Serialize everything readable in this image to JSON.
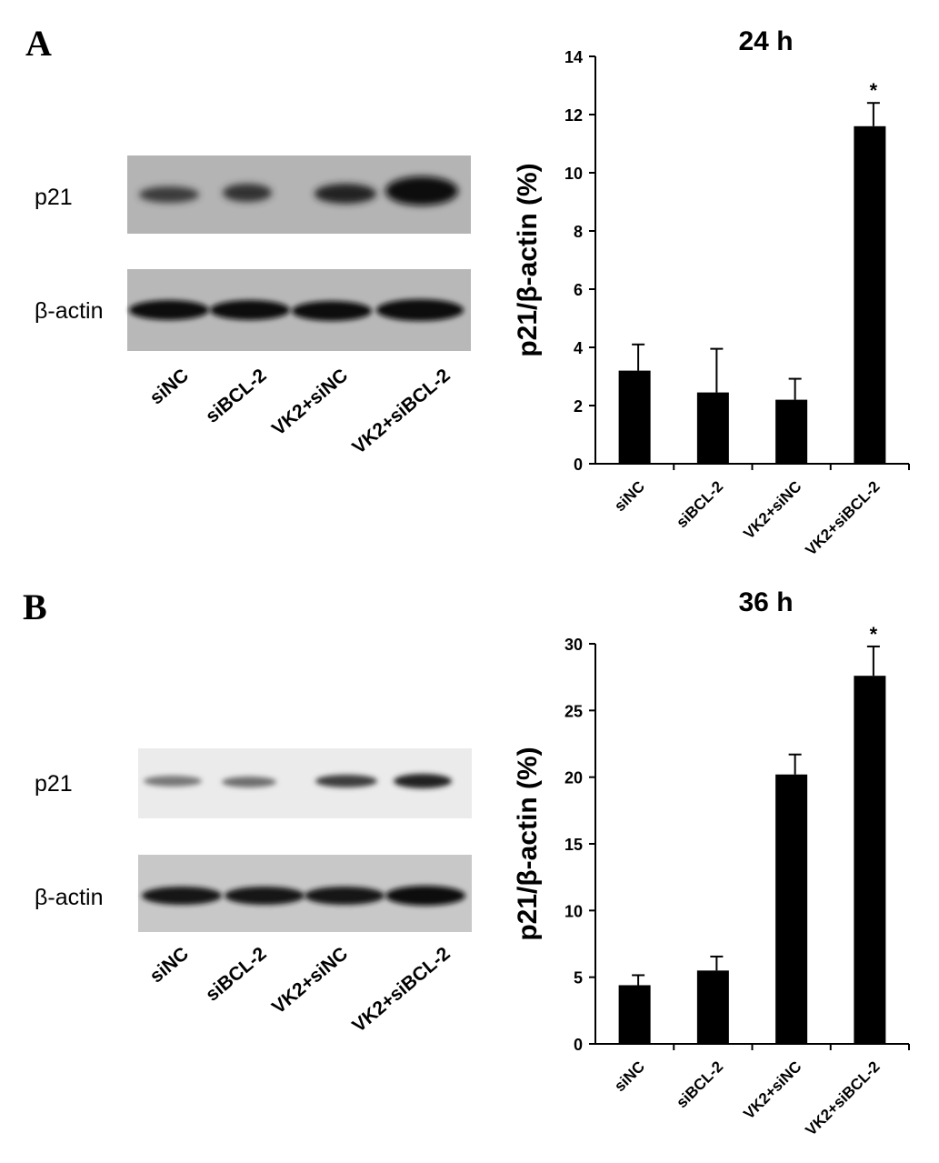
{
  "panels": [
    {
      "letter": "A",
      "blot": {
        "rows": [
          "p21",
          "β-actin"
        ],
        "lanes": [
          "siNC",
          "siBCL-2",
          "VK2+siNC",
          "VK2+siBCL-2"
        ]
      }
    },
    {
      "letter": "B",
      "blot": {
        "rows": [
          "p21",
          "β-actin"
        ],
        "lanes": [
          "siNC",
          "siBCL-2",
          "VK2+siNC",
          "VK2+siBCL-2"
        ]
      }
    }
  ],
  "chart_data": [
    {
      "type": "bar",
      "title": "24 h",
      "ylabel": "p21/β-actin (%)",
      "xlabel": "",
      "categories": [
        "siNC",
        "siBCL-2",
        "VK2+siNC",
        "VK2+siBCL-2"
      ],
      "values": [
        3.2,
        2.45,
        2.2,
        11.6
      ],
      "errors": [
        0.9,
        1.5,
        0.72,
        0.8
      ],
      "annotations": [
        "",
        "",
        "",
        "*"
      ],
      "ylim": [
        0,
        14
      ],
      "yticks": [
        0,
        2,
        4,
        6,
        8,
        10,
        12,
        14
      ],
      "bar_color": "#000000",
      "grid": false
    },
    {
      "type": "bar",
      "title": "36 h",
      "ylabel": "p21/β-actin (%)",
      "xlabel": "",
      "categories": [
        "siNC",
        "siBCL-2",
        "VK2+siNC",
        "VK2+siBCL-2"
      ],
      "values": [
        4.4,
        5.5,
        20.2,
        27.6
      ],
      "errors": [
        0.75,
        1.05,
        1.5,
        2.2
      ],
      "annotations": [
        "",
        "",
        "",
        "*"
      ],
      "ylim": [
        0,
        30
      ],
      "yticks": [
        0,
        5,
        10,
        15,
        20,
        25,
        30
      ],
      "bar_color": "#000000",
      "grid": false
    }
  ]
}
